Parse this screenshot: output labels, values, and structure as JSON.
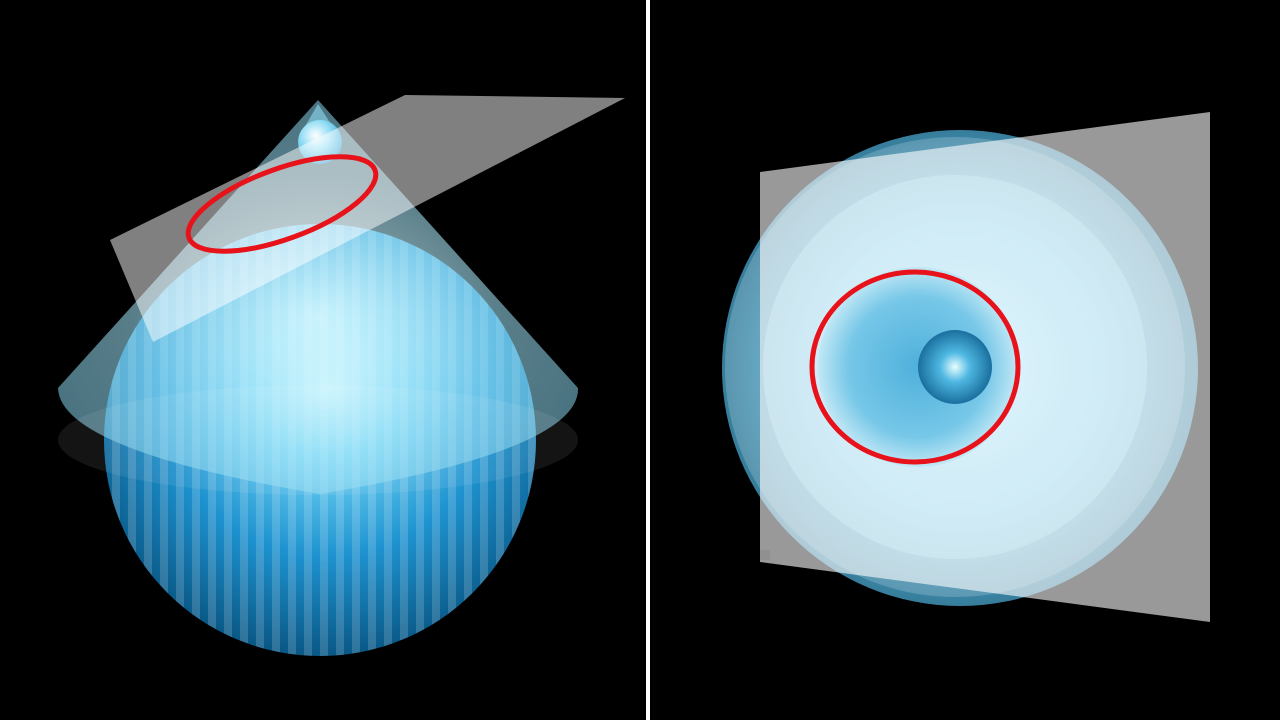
{
  "scene": {
    "left_view": "side-view",
    "right_view": "top-view"
  },
  "colors": {
    "background": "#000000",
    "sphere_light": "#bff2ff",
    "sphere_mid": "#3fb4e6",
    "sphere_dark": "#0a5f92",
    "plane": "#ffffff",
    "intersection_curve": "#e8121a",
    "divider": "#ffffff"
  },
  "icons": {
    "sphere": "sphere-shape",
    "cone": "cone-shape",
    "plane": "plane-shape",
    "curve": "ellipse-intersection-curve"
  }
}
